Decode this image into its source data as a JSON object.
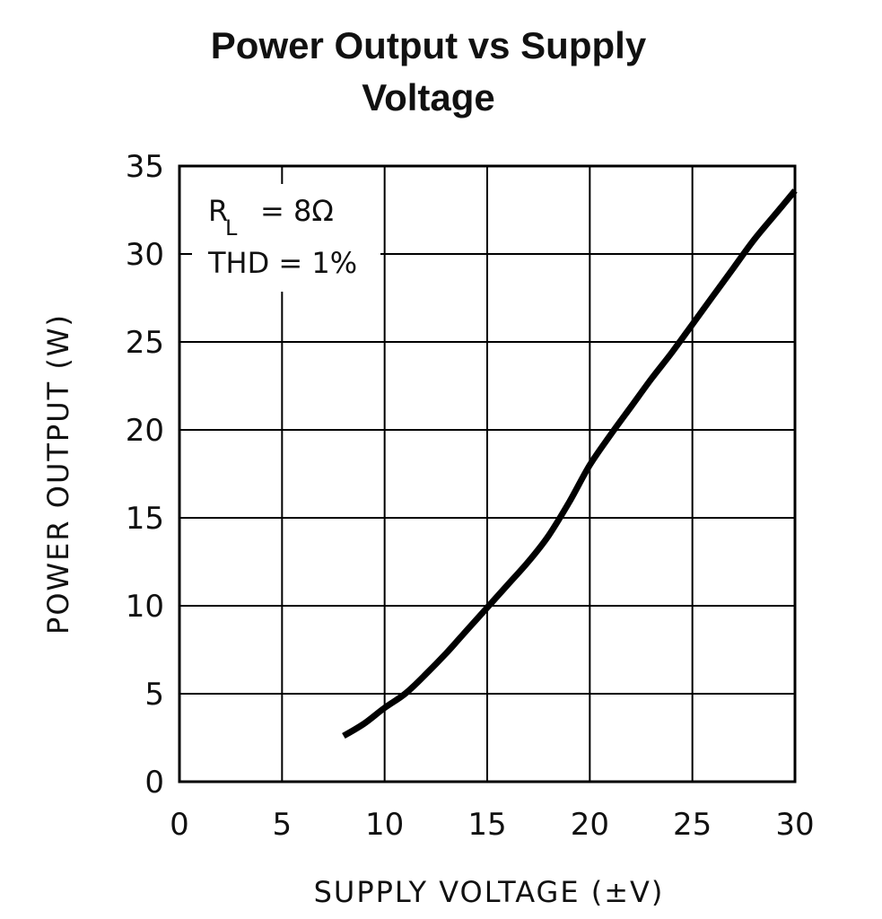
{
  "title_lines": [
    "Power Output vs Supply",
    "Voltage"
  ],
  "chart_data": {
    "type": "line",
    "title": "Power Output vs Supply Voltage",
    "xlabel": "SUPPLY VOLTAGE (±V)",
    "ylabel": "POWER OUTPUT (W)",
    "xlim": [
      0,
      30
    ],
    "ylim": [
      0,
      35
    ],
    "x_ticks": [
      "0",
      "5",
      "10",
      "15",
      "20",
      "25",
      "30"
    ],
    "y_ticks": [
      "0",
      "5",
      "10",
      "15",
      "20",
      "25",
      "30",
      "35"
    ],
    "grid": true,
    "annotations": {
      "load_symbol": "R",
      "load_subscript": "L",
      "load_value": "= 8Ω",
      "thd": "THD = 1%"
    },
    "series": [
      {
        "x": [
          8,
          9,
          10,
          11,
          12,
          13,
          14,
          15,
          16,
          17,
          18,
          19,
          20,
          21,
          22,
          23,
          24,
          25,
          26,
          27,
          28,
          29,
          30
        ],
        "y": [
          2.6,
          3.3,
          4.2,
          5.0,
          6.1,
          7.3,
          8.6,
          9.9,
          11.2,
          12.5,
          14.0,
          15.9,
          18.0,
          19.7,
          21.3,
          22.9,
          24.4,
          26.0,
          27.6,
          29.2,
          30.8,
          32.2,
          33.6
        ]
      }
    ],
    "colors": {
      "line": "#000000",
      "grid": "#000000",
      "axis": "#000000"
    }
  }
}
